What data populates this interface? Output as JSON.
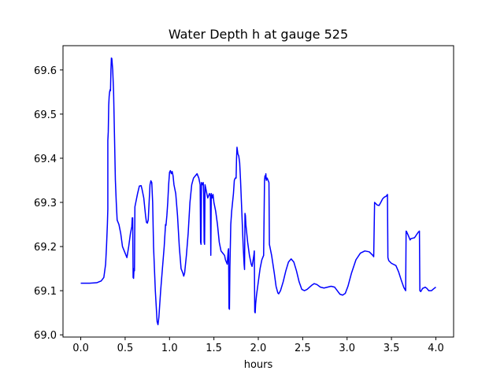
{
  "chart_data": {
    "type": "line",
    "title": "Water Depth h at gauge 525",
    "xlabel": "hours",
    "ylabel": "",
    "xlim": [
      -0.2,
      4.2
    ],
    "ylim": [
      68.995,
      69.655
    ],
    "x_ticks": [
      "0.0",
      "0.5",
      "1.0",
      "1.5",
      "2.0",
      "2.5",
      "3.0",
      "3.5",
      "4.0"
    ],
    "y_ticks": [
      "69.0",
      "69.1",
      "69.2",
      "69.3",
      "69.4",
      "69.5",
      "69.6"
    ],
    "grid": false,
    "legend": "none",
    "series": [
      {
        "color": "#0000ff",
        "points": [
          [
            0.0,
            69.117
          ],
          [
            0.1,
            69.117
          ],
          [
            0.18,
            69.118
          ],
          [
            0.23,
            69.122
          ],
          [
            0.26,
            69.13
          ],
          [
            0.28,
            69.16
          ],
          [
            0.29,
            69.2
          ],
          [
            0.3,
            69.25
          ],
          [
            0.305,
            69.285
          ],
          [
            0.305,
            69.44
          ],
          [
            0.31,
            69.46
          ],
          [
            0.315,
            69.52
          ],
          [
            0.32,
            69.54
          ],
          [
            0.325,
            69.55
          ],
          [
            0.33,
            69.555
          ],
          [
            0.335,
            69.553
          ],
          [
            0.34,
            69.6
          ],
          [
            0.345,
            69.627
          ],
          [
            0.35,
            69.626
          ],
          [
            0.36,
            69.6
          ],
          [
            0.37,
            69.55
          ],
          [
            0.38,
            69.45
          ],
          [
            0.39,
            69.35
          ],
          [
            0.4,
            69.3
          ],
          [
            0.41,
            69.26
          ],
          [
            0.43,
            69.25
          ],
          [
            0.45,
            69.23
          ],
          [
            0.47,
            69.2
          ],
          [
            0.49,
            69.19
          ],
          [
            0.51,
            69.18
          ],
          [
            0.52,
            69.175
          ],
          [
            0.54,
            69.2
          ],
          [
            0.56,
            69.23
          ],
          [
            0.575,
            69.245
          ],
          [
            0.58,
            69.265
          ],
          [
            0.585,
            69.265
          ],
          [
            0.59,
            69.13
          ],
          [
            0.595,
            69.128
          ],
          [
            0.6,
            69.15
          ],
          [
            0.605,
            69.145
          ],
          [
            0.61,
            69.29
          ],
          [
            0.62,
            69.3
          ],
          [
            0.64,
            69.32
          ],
          [
            0.66,
            69.337
          ],
          [
            0.68,
            69.338
          ],
          [
            0.69,
            69.33
          ],
          [
            0.71,
            69.31
          ],
          [
            0.73,
            69.27
          ],
          [
            0.74,
            69.255
          ],
          [
            0.75,
            69.253
          ],
          [
            0.76,
            69.26
          ],
          [
            0.77,
            69.3
          ],
          [
            0.78,
            69.34
          ],
          [
            0.79,
            69.349
          ],
          [
            0.8,
            69.345
          ],
          [
            0.81,
            69.3
          ],
          [
            0.82,
            69.2
          ],
          [
            0.84,
            69.1
          ],
          [
            0.86,
            69.03
          ],
          [
            0.87,
            69.023
          ],
          [
            0.88,
            69.04
          ],
          [
            0.9,
            69.1
          ],
          [
            0.92,
            69.15
          ],
          [
            0.94,
            69.2
          ],
          [
            0.955,
            69.25
          ],
          [
            0.96,
            69.248
          ],
          [
            0.97,
            69.27
          ],
          [
            0.98,
            69.3
          ],
          [
            0.99,
            69.34
          ],
          [
            1.0,
            69.368
          ],
          [
            1.01,
            69.372
          ],
          [
            1.02,
            69.365
          ],
          [
            1.03,
            69.37
          ],
          [
            1.04,
            69.36
          ],
          [
            1.05,
            69.34
          ],
          [
            1.07,
            69.32
          ],
          [
            1.09,
            69.27
          ],
          [
            1.11,
            69.2
          ],
          [
            1.13,
            69.15
          ],
          [
            1.15,
            69.14
          ],
          [
            1.16,
            69.133
          ],
          [
            1.17,
            69.14
          ],
          [
            1.19,
            69.18
          ],
          [
            1.21,
            69.23
          ],
          [
            1.23,
            69.3
          ],
          [
            1.25,
            69.34
          ],
          [
            1.27,
            69.355
          ],
          [
            1.29,
            69.36
          ],
          [
            1.31,
            69.365
          ],
          [
            1.33,
            69.355
          ],
          [
            1.345,
            69.34
          ],
          [
            1.35,
            69.21
          ],
          [
            1.355,
            69.205
          ],
          [
            1.36,
            69.345
          ],
          [
            1.37,
            69.34
          ],
          [
            1.38,
            69.345
          ],
          [
            1.385,
            69.32
          ],
          [
            1.39,
            69.21
          ],
          [
            1.395,
            69.205
          ],
          [
            1.4,
            69.34
          ],
          [
            1.41,
            69.33
          ],
          [
            1.42,
            69.32
          ],
          [
            1.43,
            69.31
          ],
          [
            1.45,
            69.32
          ],
          [
            1.46,
            69.315
          ],
          [
            1.465,
            69.18
          ],
          [
            1.47,
            69.32
          ],
          [
            1.48,
            69.31
          ],
          [
            1.49,
            69.318
          ],
          [
            1.5,
            69.3
          ],
          [
            1.52,
            69.28
          ],
          [
            1.54,
            69.25
          ],
          [
            1.56,
            69.21
          ],
          [
            1.58,
            69.19
          ],
          [
            1.6,
            69.185
          ],
          [
            1.62,
            69.18
          ],
          [
            1.63,
            69.17
          ],
          [
            1.65,
            69.16
          ],
          [
            1.66,
            69.19
          ],
          [
            1.665,
            69.195
          ],
          [
            1.67,
            69.06
          ],
          [
            1.675,
            69.058
          ],
          [
            1.68,
            69.15
          ],
          [
            1.69,
            69.25
          ],
          [
            1.7,
            69.28
          ],
          [
            1.72,
            69.32
          ],
          [
            1.73,
            69.35
          ],
          [
            1.74,
            69.355
          ],
          [
            1.75,
            69.355
          ],
          [
            1.755,
            69.4
          ],
          [
            1.76,
            69.425
          ],
          [
            1.77,
            69.41
          ],
          [
            1.78,
            69.405
          ],
          [
            1.79,
            69.39
          ],
          [
            1.8,
            69.35
          ],
          [
            1.81,
            69.3
          ],
          [
            1.82,
            69.25
          ],
          [
            1.83,
            69.2
          ],
          [
            1.84,
            69.16
          ],
          [
            1.845,
            69.148
          ],
          [
            1.85,
            69.275
          ],
          [
            1.855,
            69.27
          ],
          [
            1.86,
            69.25
          ],
          [
            1.87,
            69.23
          ],
          [
            1.88,
            69.21
          ],
          [
            1.9,
            69.18
          ],
          [
            1.92,
            69.16
          ],
          [
            1.93,
            69.155
          ],
          [
            1.95,
            69.18
          ],
          [
            1.955,
            69.19
          ],
          [
            1.96,
            69.052
          ],
          [
            1.965,
            69.05
          ],
          [
            1.97,
            69.07
          ],
          [
            1.98,
            69.09
          ],
          [
            2.0,
            69.12
          ],
          [
            2.02,
            69.15
          ],
          [
            2.04,
            69.17
          ],
          [
            2.05,
            69.175
          ],
          [
            2.06,
            69.18
          ],
          [
            2.07,
            69.35
          ],
          [
            2.075,
            69.36
          ],
          [
            2.08,
            69.355
          ],
          [
            2.085,
            69.365
          ],
          [
            2.09,
            69.35
          ],
          [
            2.1,
            69.355
          ],
          [
            2.11,
            69.35
          ],
          [
            2.12,
            69.345
          ],
          [
            2.125,
            69.205
          ],
          [
            2.13,
            69.2
          ],
          [
            2.15,
            69.18
          ],
          [
            2.18,
            69.14
          ],
          [
            2.2,
            69.11
          ],
          [
            2.22,
            69.095
          ],
          [
            2.23,
            69.093
          ],
          [
            2.25,
            69.1
          ],
          [
            2.28,
            69.12
          ],
          [
            2.31,
            69.145
          ],
          [
            2.34,
            69.165
          ],
          [
            2.37,
            69.172
          ],
          [
            2.4,
            69.165
          ],
          [
            2.43,
            69.145
          ],
          [
            2.46,
            69.12
          ],
          [
            2.49,
            69.103
          ],
          [
            2.52,
            69.1
          ],
          [
            2.55,
            69.103
          ],
          [
            2.6,
            69.112
          ],
          [
            2.63,
            69.116
          ],
          [
            2.66,
            69.114
          ],
          [
            2.7,
            69.108
          ],
          [
            2.74,
            69.106
          ],
          [
            2.78,
            69.108
          ],
          [
            2.82,
            69.11
          ],
          [
            2.86,
            69.108
          ],
          [
            2.89,
            69.1
          ],
          [
            2.92,
            69.092
          ],
          [
            2.95,
            69.09
          ],
          [
            2.98,
            69.094
          ],
          [
            3.01,
            69.11
          ],
          [
            3.05,
            69.14
          ],
          [
            3.1,
            69.17
          ],
          [
            3.15,
            69.185
          ],
          [
            3.2,
            69.19
          ],
          [
            3.25,
            69.188
          ],
          [
            3.29,
            69.18
          ],
          [
            3.3,
            69.177
          ],
          [
            3.31,
            69.3
          ],
          [
            3.32,
            69.298
          ],
          [
            3.34,
            69.294
          ],
          [
            3.36,
            69.293
          ],
          [
            3.38,
            69.3
          ],
          [
            3.4,
            69.308
          ],
          [
            3.42,
            69.312
          ],
          [
            3.44,
            69.314
          ],
          [
            3.455,
            69.318
          ],
          [
            3.46,
            69.175
          ],
          [
            3.47,
            69.168
          ],
          [
            3.5,
            69.162
          ],
          [
            3.55,
            69.157
          ],
          [
            3.58,
            69.143
          ],
          [
            3.61,
            69.124
          ],
          [
            3.64,
            69.107
          ],
          [
            3.66,
            69.1
          ],
          [
            3.665,
            69.235
          ],
          [
            3.67,
            69.234
          ],
          [
            3.69,
            69.225
          ],
          [
            3.7,
            69.22
          ],
          [
            3.71,
            69.215
          ],
          [
            3.72,
            69.218
          ],
          [
            3.74,
            69.219
          ],
          [
            3.76,
            69.22
          ],
          [
            3.78,
            69.226
          ],
          [
            3.8,
            69.232
          ],
          [
            3.815,
            69.235
          ],
          [
            3.82,
            69.1
          ],
          [
            3.83,
            69.098
          ],
          [
            3.85,
            69.105
          ],
          [
            3.88,
            69.108
          ],
          [
            3.9,
            69.105
          ],
          [
            3.92,
            69.1
          ],
          [
            3.95,
            69.1
          ],
          [
            3.98,
            69.105
          ],
          [
            4.0,
            69.108
          ]
        ]
      }
    ]
  }
}
